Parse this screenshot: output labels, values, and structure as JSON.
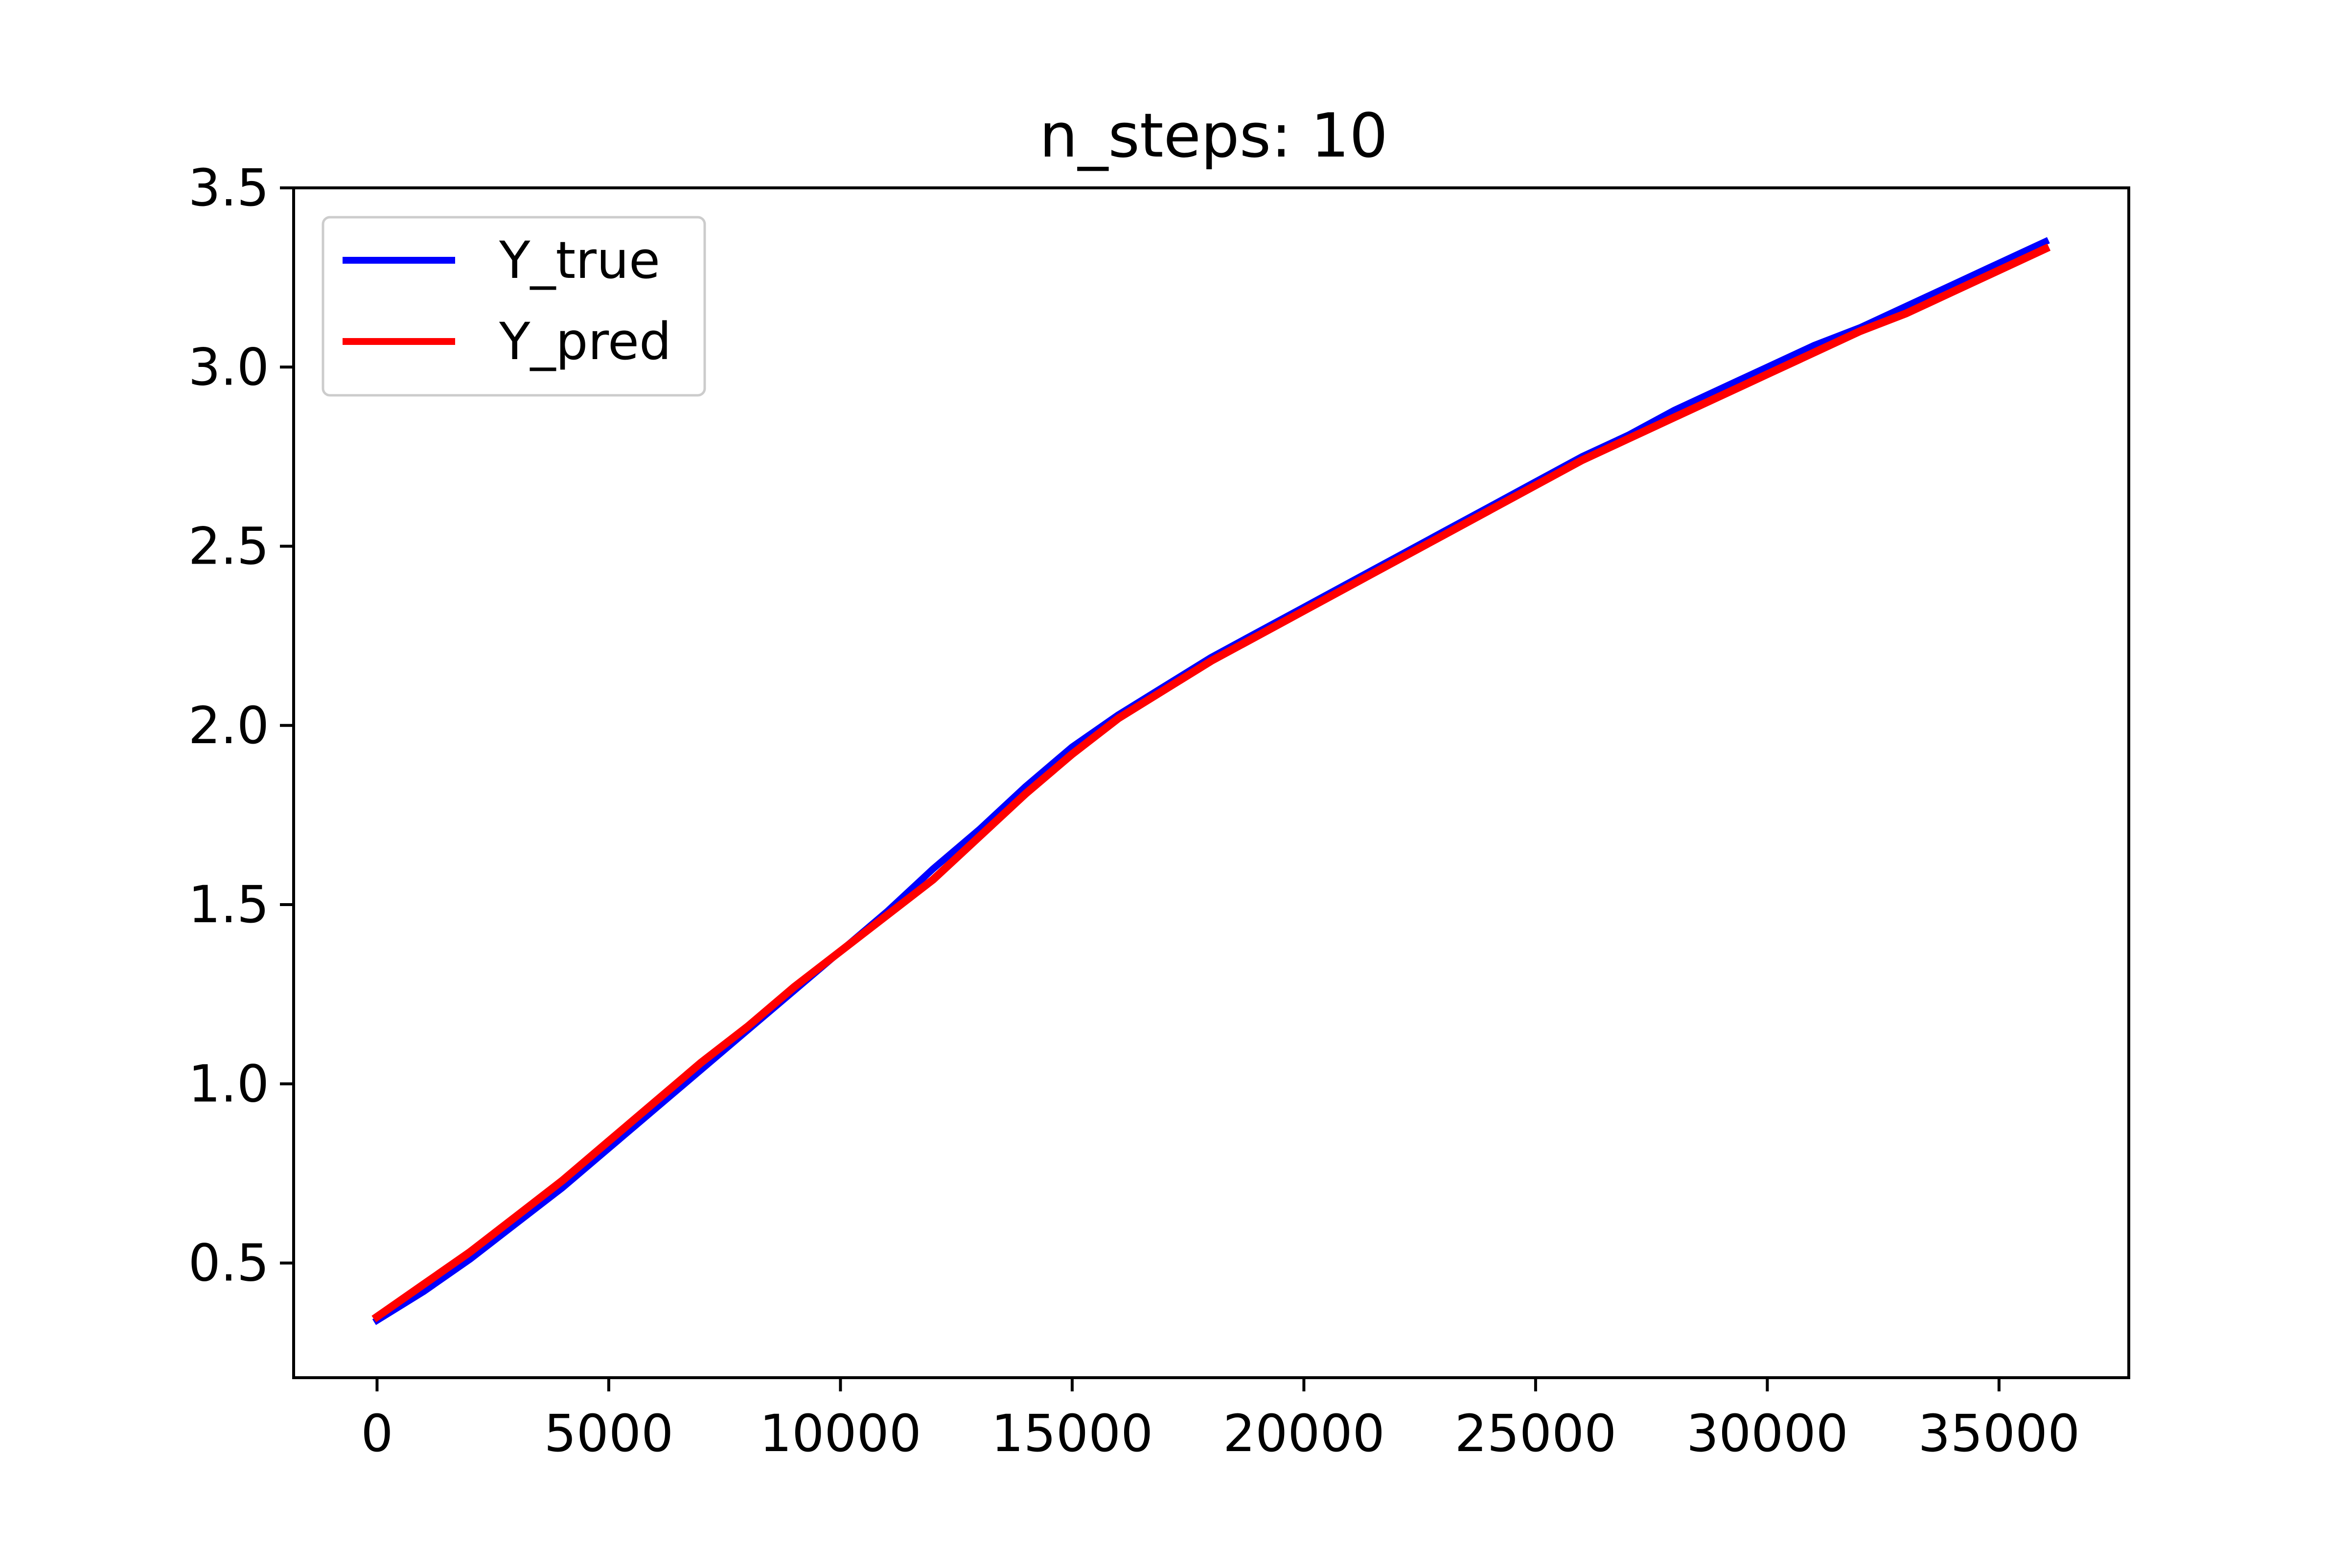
{
  "chart_data": {
    "type": "line",
    "title": "n_steps: 10",
    "xlabel": "",
    "ylabel": "",
    "xlim": [
      -1800,
      37800
    ],
    "ylim": [
      0.18,
      3.5
    ],
    "x_ticks": [
      {
        "value": 0,
        "label": "0"
      },
      {
        "value": 5000,
        "label": "5000"
      },
      {
        "value": 10000,
        "label": "10000"
      },
      {
        "value": 15000,
        "label": "15000"
      },
      {
        "value": 20000,
        "label": "20000"
      },
      {
        "value": 25000,
        "label": "25000"
      },
      {
        "value": 30000,
        "label": "30000"
      },
      {
        "value": 35000,
        "label": "35000"
      }
    ],
    "y_ticks": [
      {
        "value": 0.5,
        "label": "0.5"
      },
      {
        "value": 1.0,
        "label": "1.0"
      },
      {
        "value": 1.5,
        "label": "1.5"
      },
      {
        "value": 2.0,
        "label": "2.0"
      },
      {
        "value": 2.5,
        "label": "2.5"
      },
      {
        "value": 3.0,
        "label": "3.0"
      },
      {
        "value": 3.5,
        "label": "3.5"
      }
    ],
    "grid": false,
    "legend": "top-left",
    "series": [
      {
        "name": "Y_true",
        "color": "#0000ff",
        "x": [
          0,
          1000,
          2000,
          3000,
          4000,
          5000,
          6000,
          7000,
          8000,
          9000,
          10000,
          11000,
          12000,
          13000,
          14000,
          15000,
          16000,
          17000,
          18000,
          19000,
          20000,
          21000,
          22000,
          23000,
          24000,
          25000,
          26000,
          27000,
          28000,
          29000,
          30000,
          31000,
          32000,
          33000,
          34000,
          35000,
          36000
        ],
        "y": [
          0.34,
          0.42,
          0.51,
          0.61,
          0.71,
          0.82,
          0.93,
          1.04,
          1.15,
          1.26,
          1.37,
          1.48,
          1.6,
          1.71,
          1.83,
          1.94,
          2.03,
          2.11,
          2.19,
          2.26,
          2.33,
          2.4,
          2.47,
          2.54,
          2.61,
          2.68,
          2.75,
          2.81,
          2.88,
          2.94,
          3.0,
          3.06,
          3.11,
          3.17,
          3.23,
          3.29,
          3.35
        ]
      },
      {
        "name": "Y_pred",
        "color": "#ff0000",
        "x": [
          0,
          1000,
          2000,
          3000,
          4000,
          5000,
          6000,
          7000,
          8000,
          9000,
          10000,
          11000,
          12000,
          13000,
          14000,
          15000,
          16000,
          17000,
          18000,
          19000,
          20000,
          21000,
          22000,
          23000,
          24000,
          25000,
          26000,
          27000,
          28000,
          29000,
          30000,
          31000,
          32000,
          33000,
          34000,
          35000,
          36000
        ],
        "y": [
          0.35,
          0.44,
          0.53,
          0.63,
          0.73,
          0.84,
          0.95,
          1.06,
          1.16,
          1.27,
          1.37,
          1.47,
          1.57,
          1.69,
          1.81,
          1.92,
          2.02,
          2.1,
          2.18,
          2.25,
          2.32,
          2.39,
          2.46,
          2.53,
          2.6,
          2.67,
          2.74,
          2.8,
          2.86,
          2.92,
          2.98,
          3.04,
          3.1,
          3.15,
          3.21,
          3.27,
          3.33
        ]
      }
    ]
  }
}
